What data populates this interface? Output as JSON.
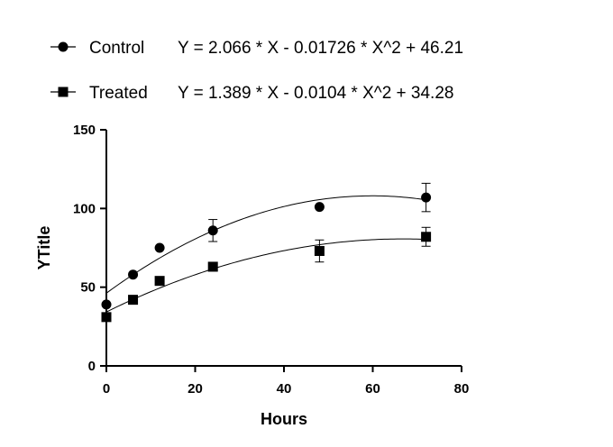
{
  "chart_data": {
    "type": "scatter",
    "title": "",
    "xlabel": "Hours",
    "ylabel": "YTitle",
    "xlim": [
      0,
      80
    ],
    "ylim": [
      0,
      150
    ],
    "xticks": [
      0,
      20,
      40,
      60,
      80
    ],
    "yticks": [
      0,
      50,
      100,
      150
    ],
    "grid": false,
    "legend_position": "top-left",
    "series": [
      {
        "name": "Control",
        "marker": "circle",
        "color": "#000000",
        "equation": "Y = 2.066 * X - 0.01726 * X^2 + 46.21",
        "fit": {
          "a": -0.01726,
          "b": 2.066,
          "c": 46.21
        },
        "x": [
          0,
          6,
          12,
          24,
          48,
          72
        ],
        "y": [
          39,
          58,
          75,
          86,
          101,
          107
        ],
        "error": [
          0,
          0,
          0,
          7,
          0,
          9
        ]
      },
      {
        "name": "Treated",
        "marker": "square",
        "color": "#000000",
        "equation": "Y = 1.389 * X - 0.0104 * X^2 + 34.28",
        "fit": {
          "a": -0.0104,
          "b": 1.389,
          "c": 34.28
        },
        "x": [
          0,
          6,
          12,
          24,
          48,
          72
        ],
        "y": [
          31,
          42,
          54,
          63,
          73,
          82
        ],
        "error": [
          0,
          0,
          0,
          0,
          7,
          6
        ]
      }
    ]
  }
}
